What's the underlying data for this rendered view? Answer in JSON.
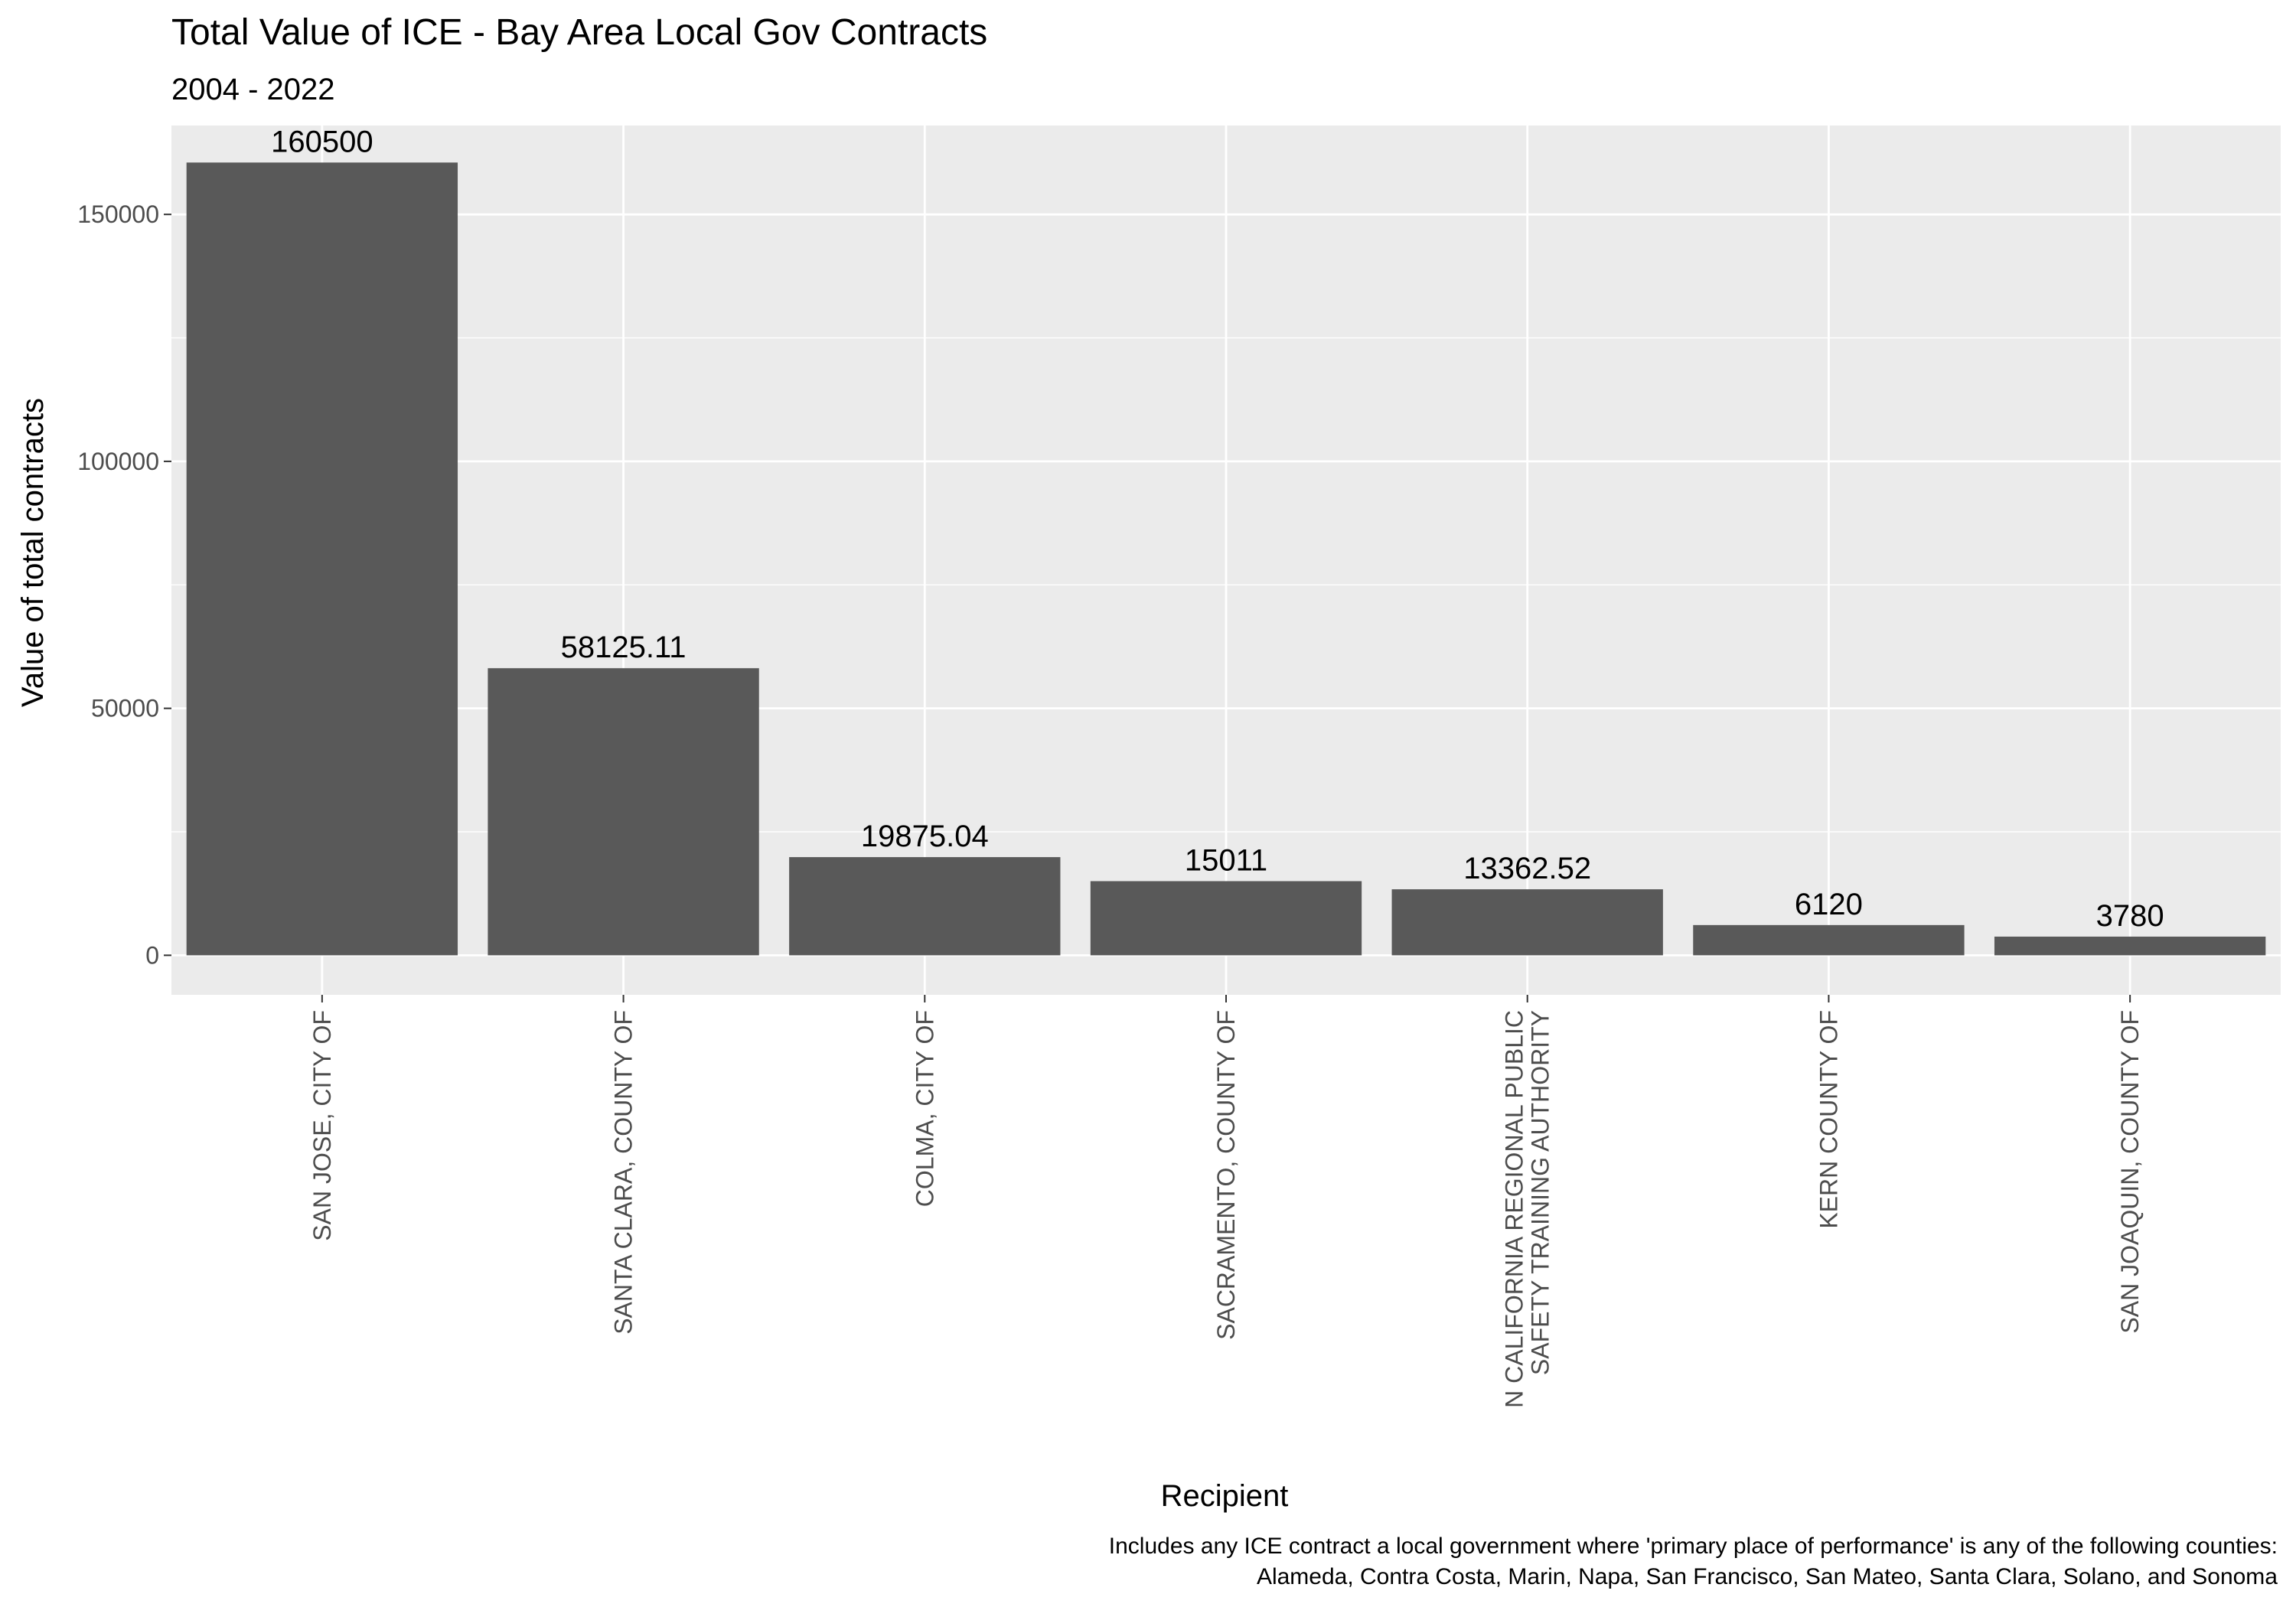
{
  "chart_data": {
    "type": "bar",
    "title": "Total Value of ICE - Bay Area Local Gov Contracts",
    "subtitle": "2004 - 2022",
    "xlabel": "Recipient",
    "ylabel": "Value of total contracts",
    "caption": [
      "Includes any ICE contract a local government where 'primary place of performance' is any of the following counties:",
      "Alameda, Contra Costa, Marin, Napa, San Francisco, San Mateo, Santa Clara, Solano, and Sonoma"
    ],
    "categories": [
      [
        "SAN JOSE, CITY OF"
      ],
      [
        "SANTA CLARA, COUNTY OF"
      ],
      [
        "COLMA, CITY OF"
      ],
      [
        "SACRAMENTO, COUNTY OF"
      ],
      [
        "N CALIFORNIA REGIONAL PUBLIC",
        "SAFETY TRAINING AUTHORITY"
      ],
      [
        "KERN COUNTY OF"
      ],
      [
        "SAN JOAQUIN, COUNTY OF"
      ]
    ],
    "values": [
      160500,
      58125.11,
      19875.04,
      15011,
      13362.52,
      6120,
      3780
    ],
    "value_labels": [
      "160500",
      "58125.11",
      "19875.04",
      "15011",
      "13362.52",
      "6120",
      "3780"
    ],
    "yticks": [
      0,
      50000,
      100000,
      150000
    ],
    "ytick_labels": [
      "0",
      "50000",
      "100000",
      "150000"
    ],
    "ylim": [
      -8000,
      168000
    ],
    "grid": true,
    "colors": {
      "panel": "#EBEBEB",
      "grid": "#FFFFFF",
      "bar": "#595959"
    }
  }
}
